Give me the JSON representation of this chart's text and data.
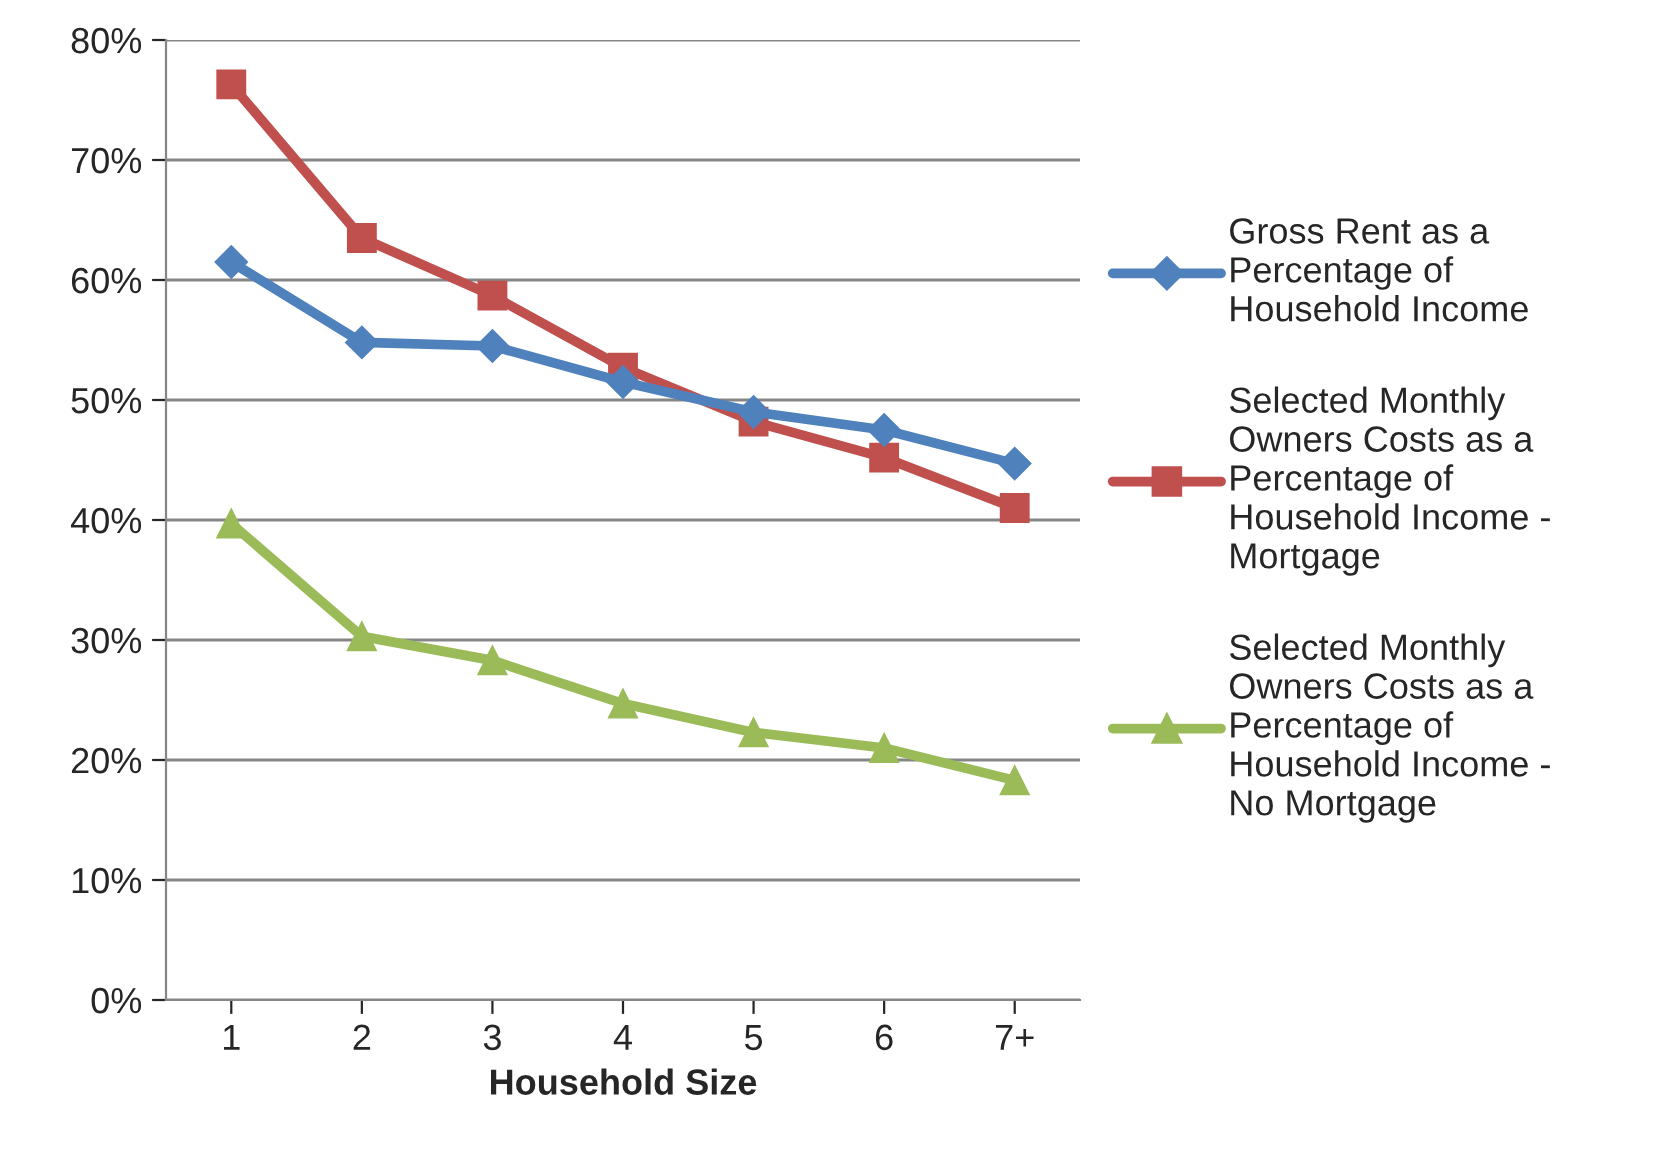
{
  "chart_data": {
    "type": "line",
    "xlabel": "Household Size",
    "categories": [
      "1",
      "2",
      "3",
      "4",
      "5",
      "6",
      "7+"
    ],
    "series": [
      {
        "name": "Gross Rent as a Percentage of Household Income",
        "color": "#4f81bd",
        "marker": "diamond",
        "values": [
          61.5,
          54.8,
          54.5,
          51.5,
          49,
          47.5,
          44.7
        ]
      },
      {
        "name": "Selected Monthly Owners Costs as a Percentage of Household Income - Mortgage",
        "color": "#c0504d",
        "marker": "square",
        "values": [
          76.3,
          63.5,
          58.7,
          52.7,
          48.2,
          45.2,
          41
        ]
      },
      {
        "name": "Selected Monthly Owners Costs as a Percentage of Household Income - No Mortgage",
        "color": "#9bbb59",
        "marker": "triangle",
        "values": [
          39.7,
          30.3,
          28.3,
          24.7,
          22.3,
          21,
          18.3
        ]
      }
    ],
    "ylim": [
      0,
      80
    ],
    "yticks": [
      {
        "value": 0,
        "label": "0%"
      },
      {
        "value": 10,
        "label": "10%"
      },
      {
        "value": 20,
        "label": "20%"
      },
      {
        "value": 30,
        "label": "30%"
      },
      {
        "value": 40,
        "label": "40%"
      },
      {
        "value": 50,
        "label": "50%"
      },
      {
        "value": 60,
        "label": "60%"
      },
      {
        "value": 70,
        "label": "70%"
      },
      {
        "value": 80,
        "label": "80%"
      }
    ],
    "grid": "y",
    "legend": "right",
    "line_style": "solid"
  }
}
